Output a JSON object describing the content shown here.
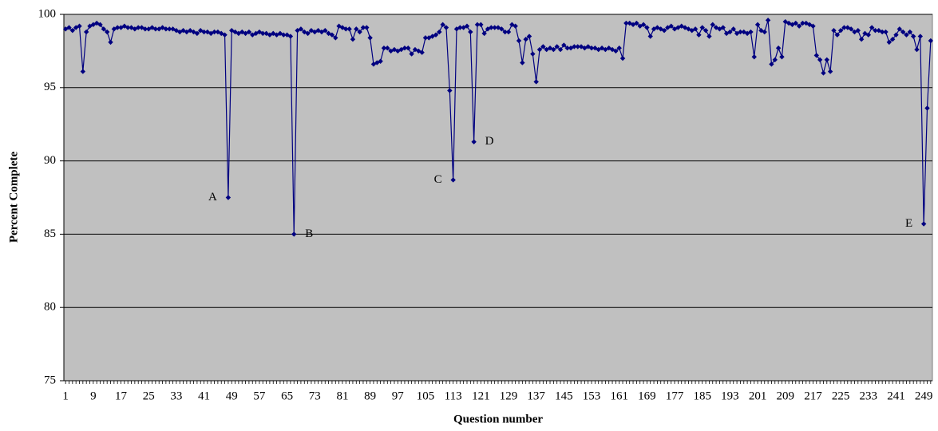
{
  "chart_data": {
    "type": "line",
    "xlabel": "Question number",
    "ylabel": "Percent Complete",
    "x": [
      1,
      2,
      3,
      4,
      5,
      6,
      7,
      8,
      9,
      10,
      11,
      12,
      13,
      14,
      15,
      16,
      17,
      18,
      19,
      20,
      21,
      22,
      23,
      24,
      25,
      26,
      27,
      28,
      29,
      30,
      31,
      32,
      33,
      34,
      35,
      36,
      37,
      38,
      39,
      40,
      41,
      42,
      43,
      44,
      45,
      46,
      47,
      48,
      49,
      50,
      51,
      52,
      53,
      54,
      55,
      56,
      57,
      58,
      59,
      60,
      61,
      62,
      63,
      64,
      65,
      66,
      67,
      68,
      69,
      70,
      71,
      72,
      73,
      74,
      75,
      76,
      77,
      78,
      79,
      80,
      81,
      82,
      83,
      84,
      85,
      86,
      87,
      88,
      89,
      90,
      91,
      92,
      93,
      94,
      95,
      96,
      97,
      98,
      99,
      100,
      101,
      102,
      103,
      104,
      105,
      106,
      107,
      108,
      109,
      110,
      111,
      112,
      113,
      114,
      115,
      116,
      117,
      118,
      119,
      120,
      121,
      122,
      123,
      124,
      125,
      126,
      127,
      128,
      129,
      130,
      131,
      132,
      133,
      134,
      135,
      136,
      137,
      138,
      139,
      140,
      141,
      142,
      143,
      144,
      145,
      146,
      147,
      148,
      149,
      150,
      151,
      152,
      153,
      154,
      155,
      156,
      157,
      158,
      159,
      160,
      161,
      162,
      163,
      164,
      165,
      166,
      167,
      168,
      169,
      170,
      171,
      172,
      173,
      174,
      175,
      176,
      177,
      178,
      179,
      180,
      181,
      182,
      183,
      184,
      185,
      186,
      187,
      188,
      189,
      190,
      191,
      192,
      193,
      194,
      195,
      196,
      197,
      198,
      199,
      200,
      201,
      202,
      203,
      204,
      205,
      206,
      207,
      208,
      209,
      210,
      211,
      212,
      213,
      214,
      215,
      216,
      217,
      218,
      219,
      220,
      221,
      222,
      223,
      224,
      225,
      226,
      227,
      228,
      229,
      230,
      231,
      232,
      233,
      234,
      235,
      236,
      237,
      238,
      239,
      240,
      241,
      242,
      243,
      244,
      245,
      246,
      247,
      248,
      249,
      250,
      251
    ],
    "series": [
      {
        "name": "Percent Complete",
        "color": "#000080",
        "values": [
          99.0,
          99.1,
          98.9,
          99.1,
          99.2,
          96.1,
          98.8,
          99.2,
          99.3,
          99.4,
          99.3,
          99.0,
          98.8,
          98.1,
          99.0,
          99.1,
          99.1,
          99.2,
          99.1,
          99.1,
          99.0,
          99.1,
          99.1,
          99.0,
          99.0,
          99.1,
          99.0,
          99.0,
          99.1,
          99.0,
          99.0,
          99.0,
          98.9,
          98.8,
          98.9,
          98.8,
          98.9,
          98.8,
          98.7,
          98.9,
          98.8,
          98.8,
          98.7,
          98.8,
          98.8,
          98.7,
          98.6,
          87.5,
          98.9,
          98.8,
          98.7,
          98.8,
          98.7,
          98.8,
          98.6,
          98.7,
          98.8,
          98.7,
          98.7,
          98.6,
          98.7,
          98.6,
          98.7,
          98.6,
          98.6,
          98.5,
          85.0,
          98.9,
          99.0,
          98.8,
          98.7,
          98.9,
          98.8,
          98.9,
          98.8,
          98.9,
          98.7,
          98.6,
          98.4,
          99.2,
          99.1,
          99.0,
          99.0,
          98.3,
          99.0,
          98.8,
          99.1,
          99.1,
          98.4,
          96.6,
          96.7,
          96.8,
          97.7,
          97.7,
          97.5,
          97.6,
          97.5,
          97.6,
          97.7,
          97.7,
          97.3,
          97.6,
          97.5,
          97.4,
          98.4,
          98.4,
          98.5,
          98.6,
          98.8,
          99.3,
          99.1,
          94.8,
          88.7,
          99.0,
          99.1,
          99.1,
          99.2,
          98.8,
          91.3,
          99.3,
          99.3,
          98.7,
          99.0,
          99.1,
          99.1,
          99.1,
          99.0,
          98.8,
          98.8,
          99.3,
          99.2,
          98.2,
          96.7,
          98.3,
          98.5,
          97.3,
          95.4,
          97.6,
          97.8,
          97.6,
          97.7,
          97.6,
          97.8,
          97.6,
          97.9,
          97.7,
          97.7,
          97.8,
          97.8,
          97.8,
          97.7,
          97.8,
          97.7,
          97.7,
          97.6,
          97.7,
          97.6,
          97.7,
          97.6,
          97.5,
          97.7,
          97.0,
          99.4,
          99.4,
          99.3,
          99.4,
          99.2,
          99.3,
          99.1,
          98.5,
          99.0,
          99.1,
          99.0,
          98.9,
          99.1,
          99.2,
          99.0,
          99.1,
          99.2,
          99.1,
          99.0,
          98.9,
          99.0,
          98.6,
          99.1,
          98.9,
          98.5,
          99.3,
          99.1,
          99.0,
          99.1,
          98.7,
          98.8,
          99.0,
          98.7,
          98.8,
          98.8,
          98.7,
          98.8,
          97.1,
          99.3,
          98.9,
          98.8,
          99.6,
          96.6,
          96.9,
          97.7,
          97.1,
          99.5,
          99.4,
          99.3,
          99.4,
          99.2,
          99.4,
          99.4,
          99.3,
          99.2,
          97.2,
          96.9,
          96.0,
          96.9,
          96.1,
          98.9,
          98.6,
          98.9,
          99.1,
          99.1,
          99.0,
          98.8,
          98.9,
          98.3,
          98.7,
          98.6,
          99.1,
          98.9,
          98.9,
          98.8,
          98.8,
          98.1,
          98.3,
          98.6,
          99.0,
          98.8,
          98.6,
          98.8,
          98.5,
          97.6,
          98.5,
          85.7,
          93.6,
          98.2
        ]
      }
    ],
    "annotations": [
      {
        "text": "A",
        "x": 48
      },
      {
        "text": "B",
        "x": 67
      },
      {
        "text": "C",
        "x": 113
      },
      {
        "text": "D",
        "x": 119
      },
      {
        "text": "E",
        "x": 249
      }
    ],
    "xlim": [
      0.5,
      251.5
    ],
    "xticks": [
      1,
      9,
      17,
      25,
      33,
      41,
      49,
      57,
      65,
      73,
      81,
      89,
      97,
      105,
      113,
      121,
      129,
      137,
      145,
      153,
      161,
      169,
      177,
      185,
      193,
      201,
      209,
      217,
      225,
      233,
      241,
      249
    ],
    "ylim": [
      75,
      100
    ],
    "yticks": [
      75,
      80,
      85,
      90,
      95,
      100
    ],
    "grid": true,
    "background": "#c0c0c0"
  }
}
